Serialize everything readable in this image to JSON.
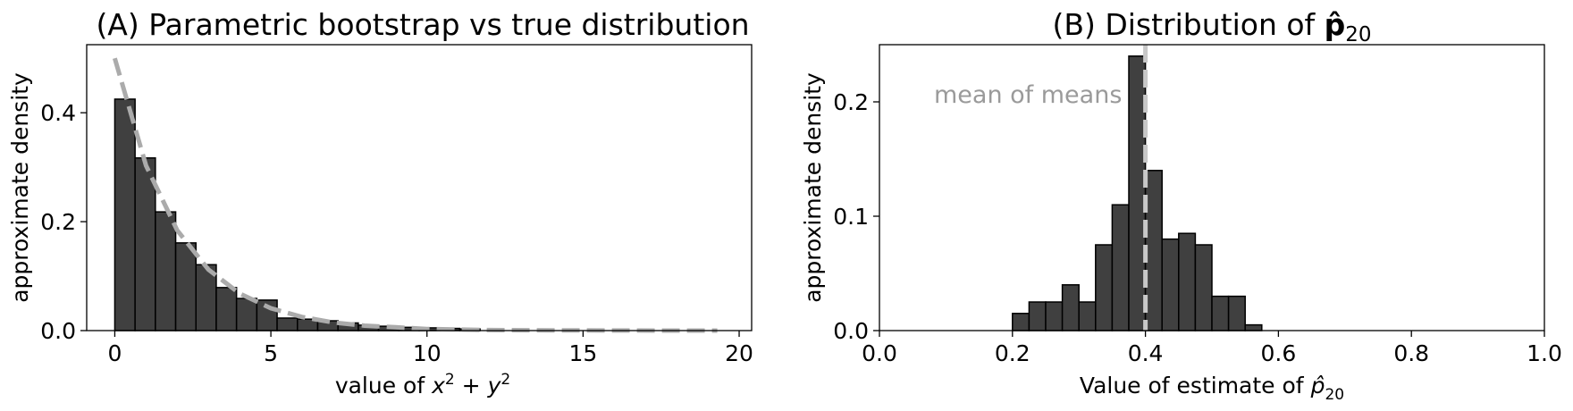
{
  "chart_data": [
    {
      "type": "bar",
      "title": "(A) Parametric bootstrap vs true distribution",
      "xlabel": "value of x² + y²",
      "ylabel": "approximate density",
      "xlim": [
        -0.9,
        20.4
      ],
      "ylim": [
        0,
        0.525
      ],
      "xticks": [
        0,
        5,
        10,
        15,
        20
      ],
      "yticks": [
        0.0,
        0.2,
        0.4
      ],
      "ytick_labels": [
        "0.0",
        "0.2",
        "0.4"
      ],
      "grid": false,
      "bin_width": 0.65,
      "bin_start": 0.0,
      "values": [
        0.425,
        0.317,
        0.218,
        0.161,
        0.121,
        0.079,
        0.059,
        0.056,
        0.023,
        0.021,
        0.018,
        0.014,
        0.01,
        0.008,
        0.006,
        0.005,
        0.004,
        0.003
      ],
      "series": [
        {
          "type": "line",
          "style": "dashed",
          "color": "#ababab",
          "x": [
            0,
            1,
            2,
            3,
            4,
            5,
            6,
            7,
            8,
            9,
            10,
            12,
            14,
            16,
            19.3
          ],
          "y": [
            0.5,
            0.303,
            0.184,
            0.112,
            0.068,
            0.041,
            0.025,
            0.015,
            0.009,
            0.006,
            0.003,
            0.001,
            0.0005,
            0.0002,
            0.0
          ]
        }
      ],
      "colors": {
        "bars": "#404040",
        "curve": "#ababab"
      }
    },
    {
      "type": "bar",
      "title_prefix": "(B) Distribution of ",
      "title_symbol": "p̂",
      "title_subscript": "20",
      "xlabel_prefix": "Value of estimate of ",
      "xlabel_symbol": "p̂",
      "xlabel_subscript": "20",
      "ylabel": "approximate density",
      "xlim": [
        0.0,
        1.0
      ],
      "ylim": [
        0,
        0.25
      ],
      "xticks": [
        0.0,
        0.2,
        0.4,
        0.6,
        0.8,
        1.0
      ],
      "xtick_labels": [
        "0.0",
        "0.2",
        "0.4",
        "0.6",
        "0.8",
        "1.0"
      ],
      "yticks": [
        0.0,
        0.1,
        0.2
      ],
      "ytick_labels": [
        "0.0",
        "0.1",
        "0.2"
      ],
      "grid": false,
      "bin_width": 0.025,
      "bin_start": 0.2,
      "values": [
        0.015,
        0.025,
        0.025,
        0.04,
        0.025,
        0.075,
        0.11,
        0.24,
        0.14,
        0.08,
        0.085,
        0.075,
        0.03,
        0.03,
        0.005
      ],
      "mean_line": {
        "x": 0.4,
        "label": "mean of means",
        "color": "#c8c8c8"
      },
      "colors": {
        "bars": "#404040"
      }
    }
  ]
}
